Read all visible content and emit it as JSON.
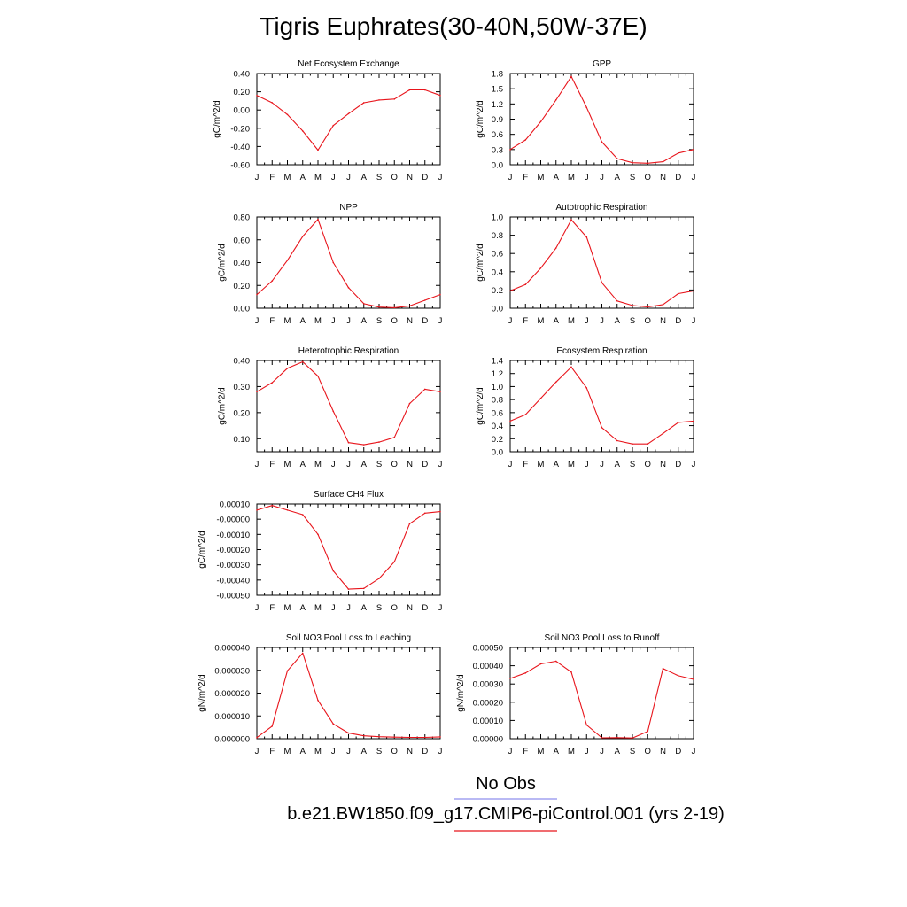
{
  "title": "Tigris Euphrates(30-40N,50W-37E)",
  "month_labels": [
    "J",
    "F",
    "M",
    "A",
    "M",
    "J",
    "J",
    "A",
    "S",
    "O",
    "N",
    "D",
    "J"
  ],
  "colors": {
    "model_line": "#e8141b",
    "obs_line": "#8f8fee",
    "axis": "#000000"
  },
  "legend": {
    "obs_label": "No Obs",
    "model_label": "b.e21.BW1850.f09_g17.CMIP6-piControl.001 (yrs 2-19)"
  },
  "chart_data": [
    {
      "type": "line",
      "title": "Net Ecosystem Exchange",
      "ylabel": "gC/m^2/d",
      "x": [
        "J",
        "F",
        "M",
        "A",
        "M",
        "J",
        "J",
        "A",
        "S",
        "O",
        "N",
        "D",
        "J"
      ],
      "yticks": [
        "0.40",
        "0.20",
        "0.00",
        "-0.20",
        "-0.40",
        "-0.60"
      ],
      "ylim": [
        -0.6,
        0.4
      ],
      "values": [
        0.16,
        0.08,
        -0.05,
        -0.23,
        -0.44,
        -0.17,
        -0.04,
        0.08,
        0.11,
        0.12,
        0.22,
        0.22,
        0.16
      ]
    },
    {
      "type": "line",
      "title": "GPP",
      "ylabel": "gC/m^2/d",
      "x": [
        "J",
        "F",
        "M",
        "A",
        "M",
        "J",
        "J",
        "A",
        "S",
        "O",
        "N",
        "D",
        "J"
      ],
      "yticks": [
        "1.8",
        "1.5",
        "1.2",
        "0.9",
        "0.6",
        "0.3",
        "0.0"
      ],
      "ylim": [
        0,
        1.8
      ],
      "values": [
        0.3,
        0.49,
        0.85,
        1.28,
        1.74,
        1.13,
        0.45,
        0.12,
        0.04,
        0.03,
        0.06,
        0.23,
        0.3
      ]
    },
    {
      "type": "line",
      "title": "NPP",
      "ylabel": "gC/m^2/d",
      "x": [
        "J",
        "F",
        "M",
        "A",
        "M",
        "J",
        "J",
        "A",
        "S",
        "O",
        "N",
        "D",
        "J"
      ],
      "yticks": [
        "0.80",
        "0.60",
        "0.40",
        "0.20",
        "0.00"
      ],
      "ylim": [
        0,
        0.8
      ],
      "values": [
        0.12,
        0.24,
        0.42,
        0.63,
        0.78,
        0.4,
        0.18,
        0.04,
        0.01,
        0.005,
        0.02,
        0.07,
        0.12
      ]
    },
    {
      "type": "line",
      "title": "Autotrophic Respiration",
      "ylabel": "gC/m^2/d",
      "x": [
        "J",
        "F",
        "M",
        "A",
        "M",
        "J",
        "J",
        "A",
        "S",
        "O",
        "N",
        "D",
        "J"
      ],
      "yticks": [
        "1.0",
        "0.8",
        "0.6",
        "0.4",
        "0.2",
        "0.0"
      ],
      "ylim": [
        0,
        1.0
      ],
      "values": [
        0.19,
        0.26,
        0.44,
        0.66,
        0.97,
        0.78,
        0.28,
        0.08,
        0.03,
        0.015,
        0.04,
        0.16,
        0.19
      ]
    },
    {
      "type": "line",
      "title": "Heterotrophic Respiration",
      "ylabel": "gC/m^2/d",
      "x": [
        "J",
        "F",
        "M",
        "A",
        "M",
        "J",
        "J",
        "A",
        "S",
        "O",
        "N",
        "D",
        "J"
      ],
      "yticks": [
        "0.40",
        "0.30",
        "0.20",
        "0.10"
      ],
      "ylim": [
        0.05,
        0.4
      ],
      "values": [
        0.28,
        0.315,
        0.37,
        0.395,
        0.34,
        0.205,
        0.085,
        0.077,
        0.087,
        0.105,
        0.235,
        0.29,
        0.28
      ]
    },
    {
      "type": "line",
      "title": "Ecosystem Respiration",
      "ylabel": "gC/m^2/d",
      "x": [
        "J",
        "F",
        "M",
        "A",
        "M",
        "J",
        "J",
        "A",
        "S",
        "O",
        "N",
        "D",
        "J"
      ],
      "yticks": [
        "1.4",
        "1.2",
        "1.0",
        "0.8",
        "0.6",
        "0.4",
        "0.2",
        "0.0"
      ],
      "ylim": [
        0,
        1.4
      ],
      "values": [
        0.47,
        0.57,
        0.82,
        1.07,
        1.3,
        0.98,
        0.37,
        0.17,
        0.12,
        0.12,
        0.28,
        0.45,
        0.47
      ]
    },
    {
      "type": "line",
      "title": "Surface CH4 Flux",
      "ylabel": "gC/m^2/d",
      "x": [
        "J",
        "F",
        "M",
        "A",
        "M",
        "J",
        "J",
        "A",
        "S",
        "O",
        "N",
        "D",
        "J"
      ],
      "yticks": [
        "0.00010",
        "-0.00000",
        "-0.00010",
        "-0.00020",
        "-0.00030",
        "-0.00040",
        "-0.00050"
      ],
      "ylim": [
        -0.0005,
        0.0001
      ],
      "values": [
        6e-05,
        9e-05,
        6e-05,
        3e-05,
        -0.0001,
        -0.00034,
        -0.00046,
        -0.000455,
        -0.00039,
        -0.00028,
        -3e-05,
        4e-05,
        5e-05
      ]
    },
    {
      "type": "line",
      "title": "Soil NO3 Pool Loss to Leaching",
      "ylabel": "gN/m^2/d",
      "x": [
        "J",
        "F",
        "M",
        "A",
        "M",
        "J",
        "J",
        "A",
        "S",
        "O",
        "N",
        "D",
        "J"
      ],
      "yticks": [
        "0.000040",
        "0.000030",
        "0.000020",
        "0.000010",
        "0.000000"
      ],
      "ylim": [
        0,
        4e-05
      ],
      "values": [
        5e-07,
        5.5e-06,
        2.98e-05,
        3.75e-05,
        1.68e-05,
        6.5e-06,
        2.5e-06,
        1.3e-06,
        9e-07,
        7e-07,
        6e-07,
        6e-07,
        8e-07
      ]
    },
    {
      "type": "line",
      "title": "Soil NO3 Pool Loss to Runoff",
      "ylabel": "gN/m^2/d",
      "x": [
        "J",
        "F",
        "M",
        "A",
        "M",
        "J",
        "J",
        "A",
        "S",
        "O",
        "N",
        "D",
        "J"
      ],
      "yticks": [
        "0.00050",
        "0.00040",
        "0.00030",
        "0.00020",
        "0.00010",
        "0.00000"
      ],
      "ylim": [
        0,
        0.0005
      ],
      "values": [
        0.00033,
        0.00036,
        0.00041,
        0.000425,
        0.000365,
        7.5e-05,
        5e-06,
        6e-06,
        4e-06,
        4e-05,
        0.000385,
        0.000345,
        0.000325
      ]
    }
  ]
}
